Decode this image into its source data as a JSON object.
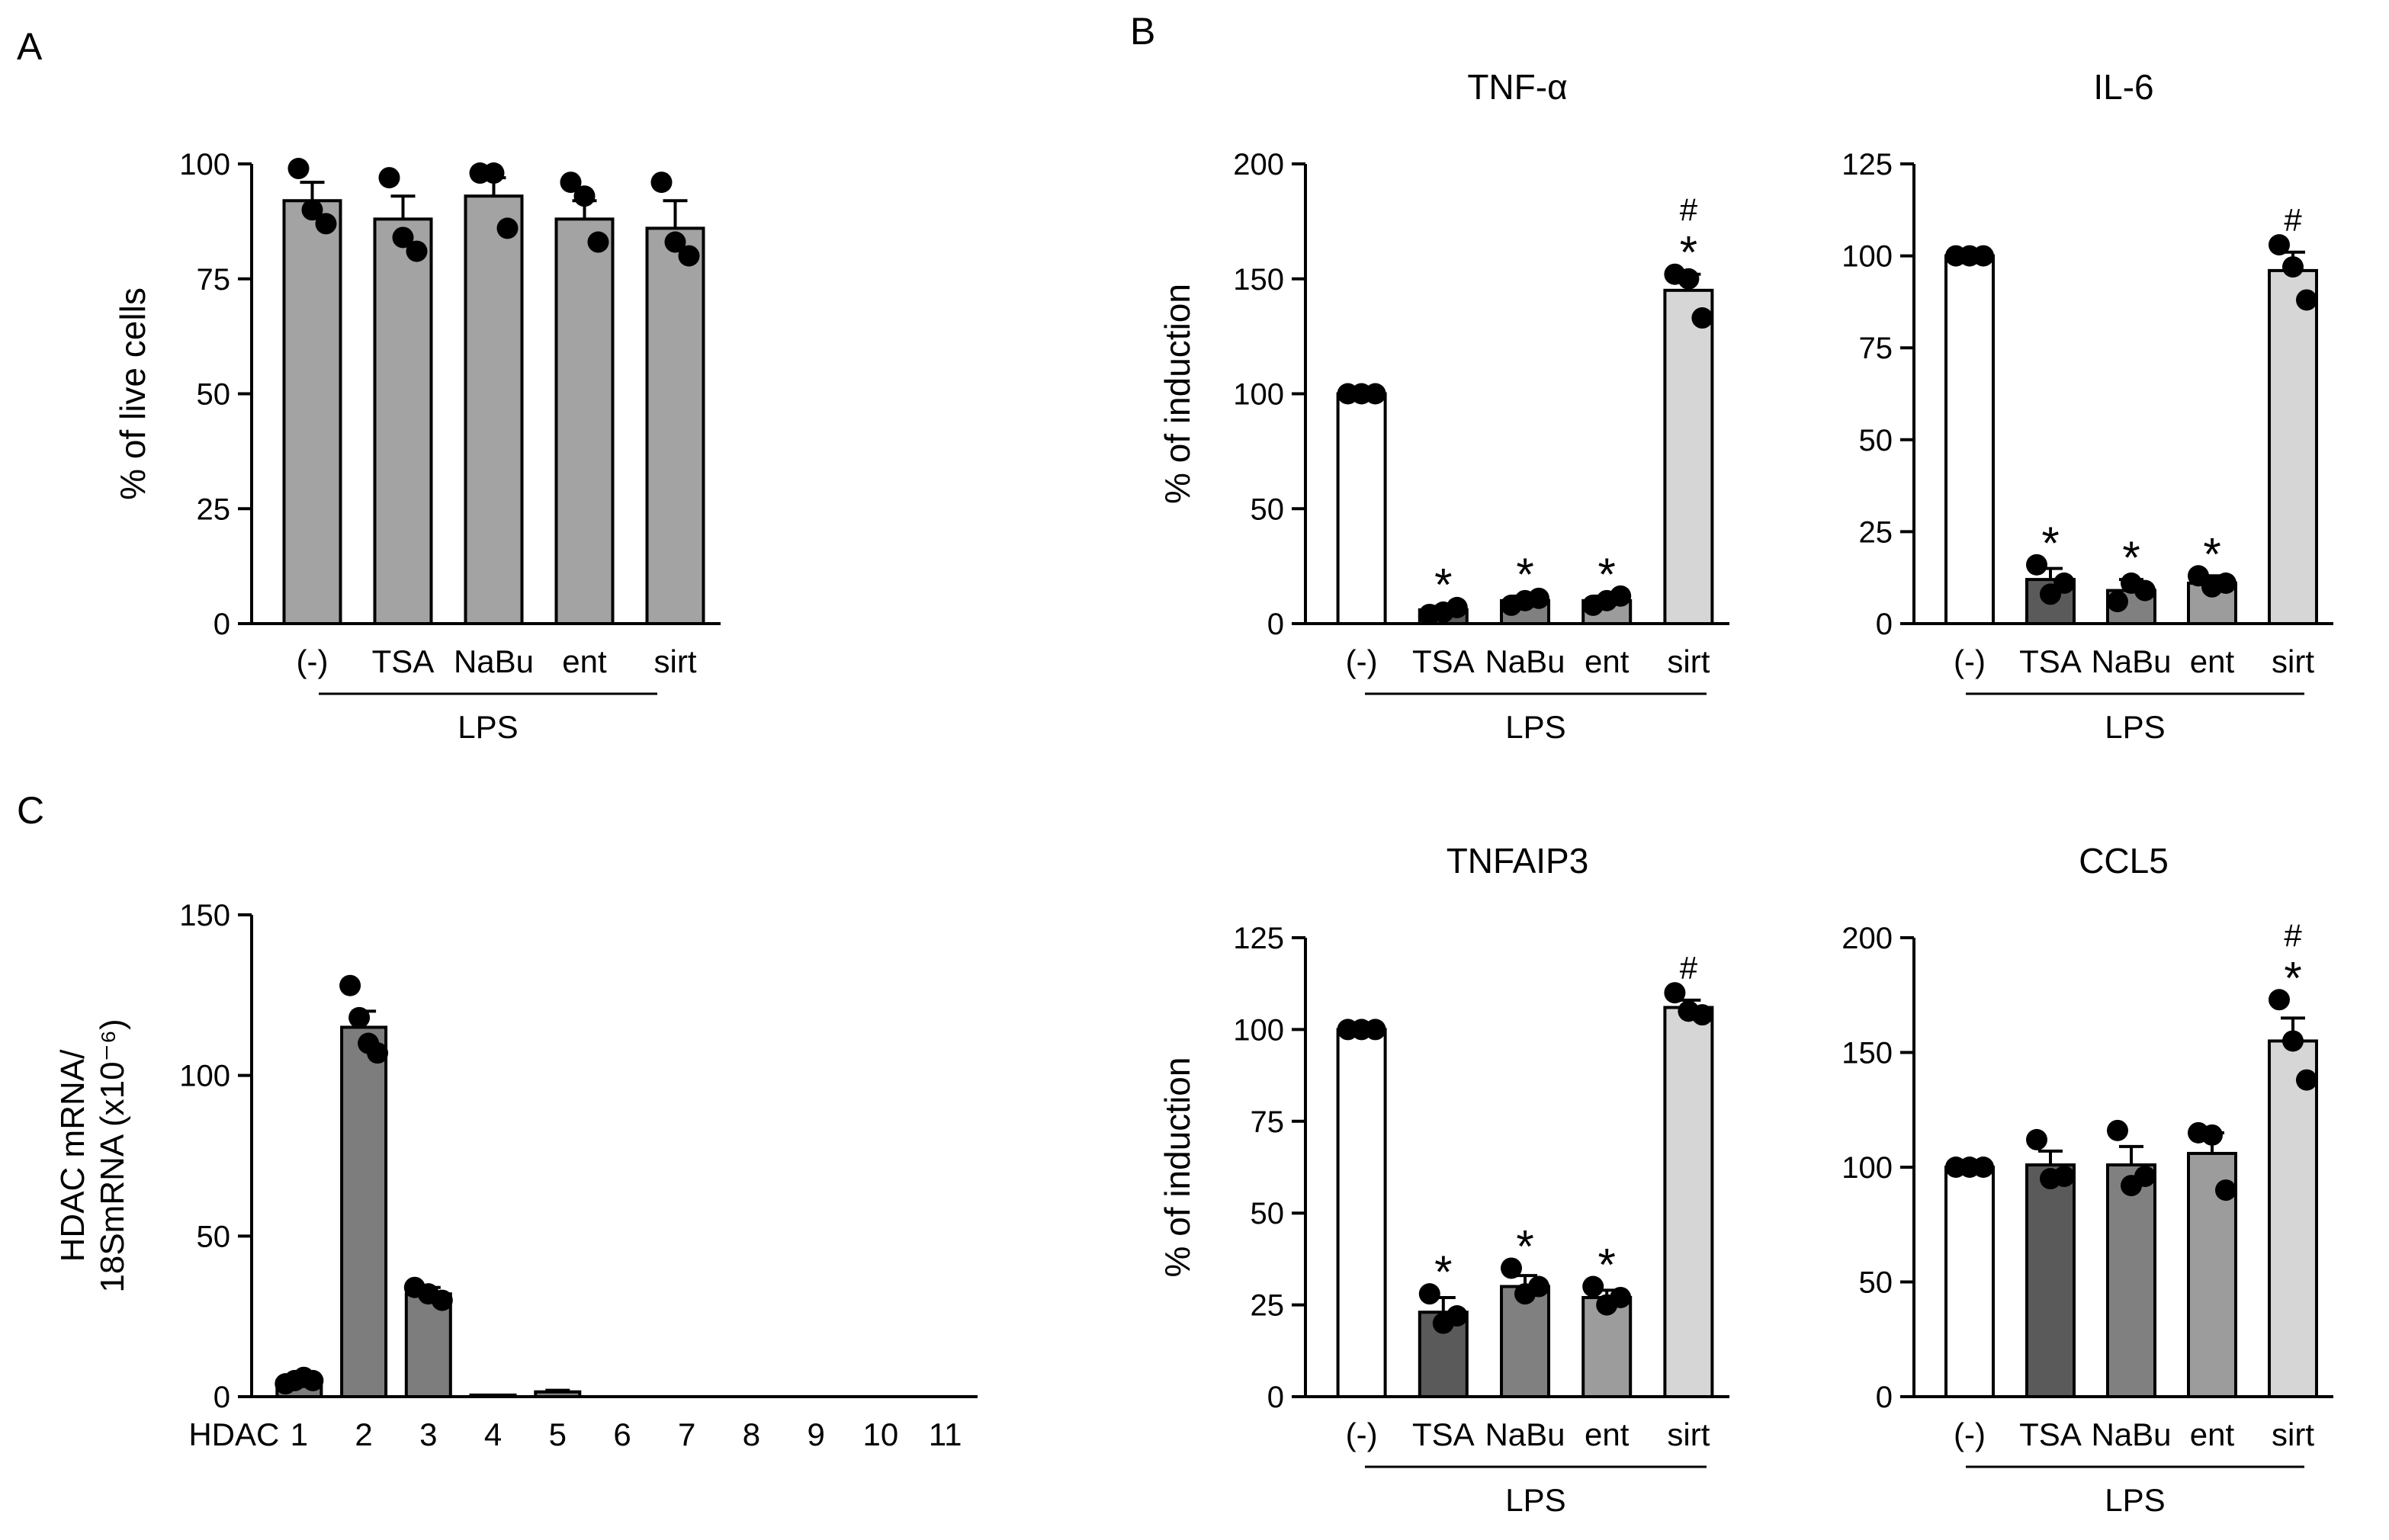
{
  "colors": {
    "white": "#ffffff",
    "tsa": "#5a5a5a",
    "nabu": "#808080",
    "ent": "#9c9c9c",
    "sirt": "#d6d6d6",
    "panelA_bar": "#a3a3a3",
    "hdac_bar": "#7d7d7d",
    "ink": "#000000"
  },
  "panel_letters": {
    "A": "A",
    "B": "B",
    "C": "C"
  },
  "chart_data": [
    {
      "id": "A",
      "type": "bar",
      "title": "",
      "ylabel": "% of live cells",
      "xlabel": "",
      "group_label": "LPS",
      "ylim": [
        0,
        100
      ],
      "yticks": [
        0,
        25,
        50,
        75,
        100
      ],
      "categories": [
        "(-)",
        "TSA",
        "NaBu",
        "ent",
        "sirt"
      ],
      "values": [
        92,
        88,
        93,
        88,
        86
      ],
      "errors": [
        4,
        5,
        4,
        4,
        6
      ],
      "points": [
        [
          99,
          90,
          87
        ],
        [
          97,
          84,
          81
        ],
        [
          98,
          98,
          86
        ],
        [
          96,
          93,
          83
        ],
        [
          96,
          83,
          80
        ]
      ],
      "fills": [
        "panelA_bar",
        "panelA_bar",
        "panelA_bar",
        "panelA_bar",
        "panelA_bar"
      ],
      "annotations": [
        "",
        "",
        "",
        "",
        ""
      ]
    },
    {
      "id": "TNF",
      "type": "bar",
      "title": "TNF-α",
      "ylabel": "% of induction",
      "xlabel": "",
      "group_label": "LPS",
      "ylim": [
        0,
        200
      ],
      "yticks": [
        0,
        50,
        100,
        150,
        200
      ],
      "categories": [
        "(-)",
        "TSA",
        "NaBu",
        "ent",
        "sirt"
      ],
      "values": [
        100,
        6,
        10,
        10,
        145
      ],
      "errors": [
        0,
        1.5,
        2,
        2,
        7
      ],
      "points": [
        [
          100,
          100,
          100
        ],
        [
          4,
          5,
          7
        ],
        [
          8,
          10,
          11
        ],
        [
          8,
          10,
          12
        ],
        [
          152,
          150,
          133
        ]
      ],
      "fills": [
        "white",
        "tsa",
        "nabu",
        "ent",
        "sirt"
      ],
      "annotations": [
        "",
        "*",
        "*",
        "*",
        "*#"
      ]
    },
    {
      "id": "IL6",
      "type": "bar",
      "title": "IL-6",
      "ylabel": "",
      "xlabel": "",
      "group_label": "LPS",
      "ylim": [
        0,
        125
      ],
      "yticks": [
        0,
        25,
        50,
        75,
        100,
        125
      ],
      "categories": [
        "(-)",
        "TSA",
        "NaBu",
        "ent",
        "sirt"
      ],
      "values": [
        100,
        12,
        9,
        11,
        96
      ],
      "errors": [
        0,
        3,
        3,
        2,
        5
      ],
      "points": [
        [
          100,
          100,
          100
        ],
        [
          16,
          8,
          11
        ],
        [
          6,
          11,
          9
        ],
        [
          13,
          10,
          11
        ],
        [
          103,
          97,
          88
        ]
      ],
      "fills": [
        "white",
        "tsa",
        "nabu",
        "ent",
        "sirt"
      ],
      "annotations": [
        "",
        "*",
        "*",
        "*",
        "#"
      ]
    },
    {
      "id": "C",
      "type": "bar",
      "title": "",
      "ylabel": "HDAC mRNA/ 18SmRNA (x10⁻⁶)",
      "xlabel": "",
      "group_label": "",
      "ylim": [
        0,
        150
      ],
      "yticks": [
        0,
        50,
        100,
        150
      ],
      "category_prefix": "HDAC",
      "categories": [
        "1",
        "2",
        "3",
        "4",
        "5",
        "6",
        "7",
        "8",
        "9",
        "10",
        "11"
      ],
      "values": [
        5,
        115,
        32,
        0.5,
        1.5,
        0,
        0,
        0,
        0,
        0,
        0
      ],
      "errors": [
        1,
        5,
        2,
        0,
        0.5,
        0,
        0,
        0,
        0,
        0,
        0
      ],
      "points": [
        [
          4,
          5,
          6,
          5
        ],
        [
          128,
          118,
          110,
          107
        ],
        [
          34,
          32,
          30
        ],
        [],
        [],
        [],
        [],
        [],
        [],
        [],
        []
      ],
      "fills": [
        "hdac_bar",
        "hdac_bar",
        "hdac_bar",
        "hdac_bar",
        "hdac_bar",
        "hdac_bar",
        "hdac_bar",
        "hdac_bar",
        "hdac_bar",
        "hdac_bar",
        "hdac_bar"
      ],
      "annotations": [
        "",
        "",
        "",
        "",
        "",
        "",
        "",
        "",
        "",
        "",
        ""
      ]
    },
    {
      "id": "TNFAIP3",
      "type": "bar",
      "title": "TNFAIP3",
      "ylabel": "% of induction",
      "xlabel": "",
      "group_label": "LPS",
      "ylim": [
        0,
        125
      ],
      "yticks": [
        0,
        25,
        50,
        75,
        100,
        125
      ],
      "categories": [
        "(-)",
        "TSA",
        "NaBu",
        "ent",
        "sirt"
      ],
      "values": [
        100,
        23,
        30,
        27,
        106
      ],
      "errors": [
        0,
        4,
        3,
        2,
        2
      ],
      "points": [
        [
          100,
          100,
          100
        ],
        [
          28,
          20,
          22
        ],
        [
          35,
          28,
          30
        ],
        [
          30,
          25,
          27
        ],
        [
          110,
          105,
          104
        ]
      ],
      "fills": [
        "white",
        "tsa",
        "nabu",
        "ent",
        "sirt"
      ],
      "annotations": [
        "",
        "*",
        "*",
        "*",
        "#"
      ]
    },
    {
      "id": "CCL5",
      "type": "bar",
      "title": "CCL5",
      "ylabel": "",
      "xlabel": "",
      "group_label": "LPS",
      "ylim": [
        0,
        200
      ],
      "yticks": [
        0,
        50,
        100,
        150,
        200
      ],
      "categories": [
        "(-)",
        "TSA",
        "NaBu",
        "ent",
        "sirt"
      ],
      "values": [
        100,
        101,
        101,
        106,
        155
      ],
      "errors": [
        0,
        6,
        8,
        9,
        10
      ],
      "points": [
        [
          100,
          100,
          100
        ],
        [
          112,
          95,
          96
        ],
        [
          116,
          92,
          96
        ],
        [
          115,
          114,
          90
        ],
        [
          173,
          155,
          138
        ]
      ],
      "fills": [
        "white",
        "tsa",
        "nabu",
        "ent",
        "sirt"
      ],
      "annotations": [
        "",
        "",
        "",
        "",
        "*#"
      ]
    }
  ]
}
